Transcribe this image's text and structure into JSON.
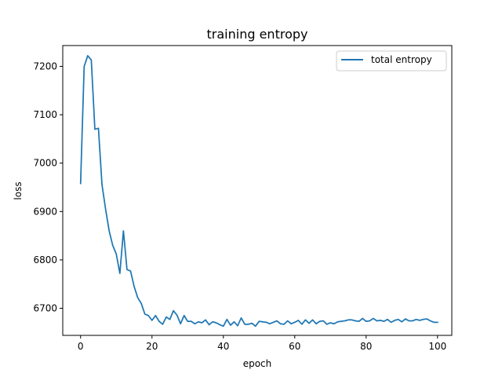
{
  "chart_data": {
    "type": "line",
    "title": "training entropy",
    "xlabel": "epoch",
    "ylabel": "loss",
    "xlim": [
      -5,
      104
    ],
    "ylim": [
      6644,
      7243
    ],
    "xticks": [
      0,
      20,
      40,
      60,
      80,
      100
    ],
    "yticks": [
      6700,
      6800,
      6900,
      7000,
      7100,
      7200
    ],
    "grid": false,
    "legend_position": "top-right",
    "series": [
      {
        "name": "total entropy",
        "color": "#1f77b4",
        "x": [
          0,
          1,
          2,
          3,
          4,
          5,
          6,
          7,
          8,
          9,
          10,
          11,
          12,
          13,
          14,
          15,
          16,
          17,
          18,
          19,
          20,
          21,
          22,
          23,
          24,
          25,
          26,
          27,
          28,
          29,
          30,
          31,
          32,
          33,
          34,
          35,
          36,
          37,
          38,
          39,
          40,
          41,
          42,
          43,
          44,
          45,
          46,
          47,
          48,
          49,
          50,
          51,
          52,
          53,
          54,
          55,
          56,
          57,
          58,
          59,
          60,
          61,
          62,
          63,
          64,
          65,
          66,
          67,
          68,
          69,
          70,
          71,
          72,
          73,
          74,
          75,
          76,
          77,
          78,
          79,
          80,
          81,
          82,
          83,
          84,
          85,
          86,
          87,
          88,
          89,
          90,
          91,
          92,
          93,
          94,
          95,
          96,
          97,
          98,
          99,
          100
        ],
        "y": [
          6958,
          7200,
          7222,
          7213,
          7070,
          7072,
          6955,
          6905,
          6860,
          6830,
          6812,
          6772,
          6860,
          6780,
          6777,
          6745,
          6722,
          6710,
          6688,
          6685,
          6675,
          6685,
          6673,
          6667,
          6682,
          6677,
          6695,
          6686,
          6668,
          6685,
          6673,
          6673,
          6668,
          6672,
          6670,
          6676,
          6666,
          6672,
          6670,
          6666,
          6663,
          6677,
          6665,
          6672,
          6664,
          6680,
          6667,
          6667,
          6669,
          6663,
          6673,
          6672,
          6671,
          6668,
          6671,
          6674,
          6668,
          6667,
          6674,
          6668,
          6671,
          6675,
          6667,
          6676,
          6669,
          6676,
          6668,
          6673,
          6674,
          6667,
          6670,
          6668,
          6672,
          6673,
          6674,
          6676,
          6676,
          6674,
          6673,
          6679,
          6673,
          6674,
          6679,
          6674,
          6675,
          6673,
          6677,
          6671,
          6675,
          6677,
          6672,
          6678,
          6674,
          6674,
          6677,
          6675,
          6677,
          6678,
          6674,
          6671,
          6671
        ]
      }
    ]
  }
}
